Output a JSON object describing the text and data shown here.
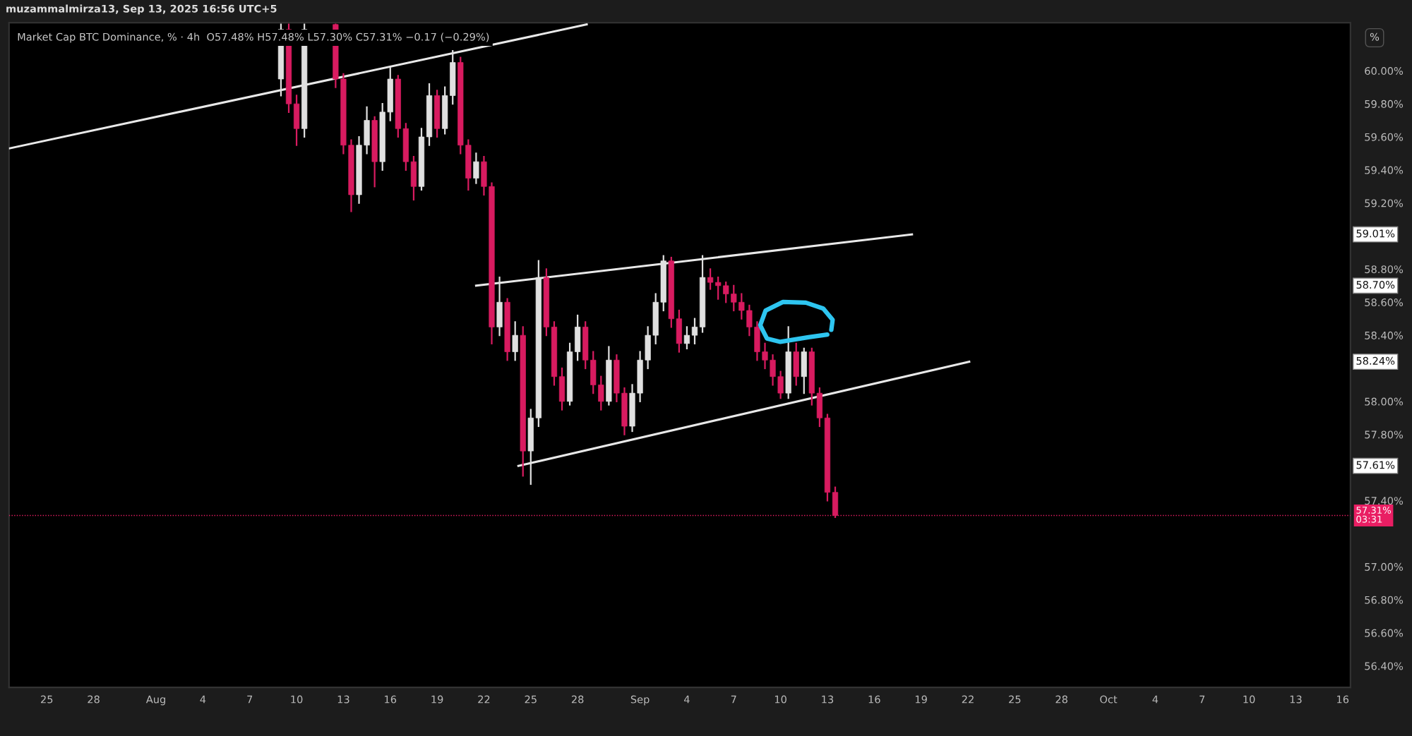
{
  "chart_data": {
    "type": "candlestick",
    "title": "Market Cap BTC Dominance, % · 4h  O57.48% H57.48% L57.30% C57.31% −0.17 (−0.29%)",
    "subtitle": "muzammalmirza13, Sep 13, 2025 16:56 UTC+5",
    "x": [
      "2025-08-09T00:00",
      "2025-08-09T12:00",
      "2025-08-10T00:00",
      "2025-08-10T12:00",
      "2025-08-12T12:00",
      "2025-08-13T00:00",
      "2025-08-13T12:00",
      "2025-08-14T00:00",
      "2025-08-14T12:00",
      "2025-08-15T00:00",
      "2025-08-15T12:00",
      "2025-08-16T00:00",
      "2025-08-16T12:00",
      "2025-08-17T00:00",
      "2025-08-17T12:00",
      "2025-08-18T00:00",
      "2025-08-18T12:00",
      "2025-08-19T00:00",
      "2025-08-19T12:00",
      "2025-08-20T00:00",
      "2025-08-20T12:00",
      "2025-08-21T00:00",
      "2025-08-21T12:00",
      "2025-08-22T00:00",
      "2025-08-22T12:00",
      "2025-08-23T00:00",
      "2025-08-23T12:00",
      "2025-08-24T00:00",
      "2025-08-24T12:00",
      "2025-08-25T00:00",
      "2025-08-25T12:00",
      "2025-08-26T00:00",
      "2025-08-26T12:00",
      "2025-08-27T00:00",
      "2025-08-27T12:00",
      "2025-08-28T00:00",
      "2025-08-28T12:00",
      "2025-08-29T00:00",
      "2025-08-29T12:00",
      "2025-08-30T00:00",
      "2025-08-30T12:00",
      "2025-08-31T00:00",
      "2025-08-31T12:00",
      "2025-09-01T00:00",
      "2025-09-01T12:00",
      "2025-09-02T00:00",
      "2025-09-02T12:00",
      "2025-09-03T00:00",
      "2025-09-03T12:00",
      "2025-09-04T00:00",
      "2025-09-04T12:00",
      "2025-09-05T00:00",
      "2025-09-05T12:00",
      "2025-09-06T00:00",
      "2025-09-06T12:00",
      "2025-09-07T00:00",
      "2025-09-07T12:00",
      "2025-09-08T00:00",
      "2025-09-08T12:00",
      "2025-09-09T00:00",
      "2025-09-09T12:00",
      "2025-09-10T00:00",
      "2025-09-10T12:00",
      "2025-09-11T00:00",
      "2025-09-11T12:00",
      "2025-09-12T00:00",
      "2025-09-12T12:00",
      "2025-09-13T00:00",
      "2025-09-13T12:00"
    ],
    "ohlc": [
      [
        59.95,
        60.28,
        59.85,
        60.25
      ],
      [
        60.25,
        60.28,
        59.75,
        59.8
      ],
      [
        59.8,
        59.85,
        59.55,
        59.65
      ],
      [
        59.65,
        60.28,
        59.6,
        60.25
      ],
      [
        60.28,
        60.28,
        59.9,
        59.95
      ],
      [
        59.95,
        59.98,
        59.5,
        59.55
      ],
      [
        59.55,
        59.58,
        59.15,
        59.25
      ],
      [
        59.25,
        59.6,
        59.2,
        59.55
      ],
      [
        59.55,
        59.78,
        59.5,
        59.7
      ],
      [
        59.7,
        59.72,
        59.3,
        59.45
      ],
      [
        59.45,
        59.8,
        59.4,
        59.75
      ],
      [
        59.75,
        60.02,
        59.7,
        59.95
      ],
      [
        59.95,
        59.97,
        59.6,
        59.65
      ],
      [
        59.65,
        59.68,
        59.4,
        59.45
      ],
      [
        59.45,
        59.48,
        59.22,
        59.3
      ],
      [
        59.3,
        59.65,
        59.28,
        59.6
      ],
      [
        59.6,
        59.92,
        59.55,
        59.85
      ],
      [
        59.85,
        59.88,
        59.6,
        59.65
      ],
      [
        59.65,
        59.9,
        59.62,
        59.85
      ],
      [
        59.85,
        60.12,
        59.8,
        60.05
      ],
      [
        60.05,
        60.08,
        59.5,
        59.55
      ],
      [
        59.55,
        59.58,
        59.28,
        59.35
      ],
      [
        59.35,
        59.5,
        59.32,
        59.45
      ],
      [
        59.45,
        59.48,
        59.25,
        59.3
      ],
      [
        59.3,
        59.32,
        58.35,
        58.45
      ],
      [
        58.45,
        58.75,
        58.4,
        58.6
      ],
      [
        58.6,
        58.62,
        58.25,
        58.3
      ],
      [
        58.3,
        58.48,
        58.25,
        58.4
      ],
      [
        58.4,
        58.45,
        57.55,
        57.7
      ],
      [
        57.7,
        57.95,
        57.5,
        57.9
      ],
      [
        57.9,
        58.85,
        57.85,
        58.75
      ],
      [
        58.75,
        58.8,
        58.4,
        58.45
      ],
      [
        58.45,
        58.48,
        58.1,
        58.15
      ],
      [
        58.15,
        58.2,
        57.95,
        58.0
      ],
      [
        58.0,
        58.35,
        57.98,
        58.3
      ],
      [
        58.3,
        58.52,
        58.25,
        58.45
      ],
      [
        58.45,
        58.48,
        58.2,
        58.25
      ],
      [
        58.25,
        58.3,
        58.05,
        58.1
      ],
      [
        58.1,
        58.15,
        57.95,
        58.0
      ],
      [
        58.0,
        58.33,
        57.98,
        58.25
      ],
      [
        58.25,
        58.28,
        58.0,
        58.05
      ],
      [
        58.05,
        58.08,
        57.8,
        57.85
      ],
      [
        57.85,
        58.1,
        57.82,
        58.05
      ],
      [
        58.05,
        58.3,
        58.0,
        58.25
      ],
      [
        58.25,
        58.45,
        58.2,
        58.4
      ],
      [
        58.4,
        58.65,
        58.35,
        58.6
      ],
      [
        58.6,
        58.88,
        58.55,
        58.85
      ],
      [
        58.85,
        58.87,
        58.45,
        58.5
      ],
      [
        58.5,
        58.55,
        58.3,
        58.35
      ],
      [
        58.35,
        58.45,
        58.32,
        58.4
      ],
      [
        58.4,
        58.5,
        58.35,
        58.45
      ],
      [
        58.45,
        58.88,
        58.42,
        58.75
      ],
      [
        58.75,
        58.8,
        58.68,
        58.72
      ],
      [
        58.72,
        58.75,
        58.62,
        58.7
      ],
      [
        58.7,
        58.72,
        58.6,
        58.65
      ],
      [
        58.65,
        58.7,
        58.55,
        58.6
      ],
      [
        58.6,
        58.65,
        58.5,
        58.55
      ],
      [
        58.55,
        58.58,
        58.4,
        58.45
      ],
      [
        58.45,
        58.48,
        58.25,
        58.3
      ],
      [
        58.3,
        58.35,
        58.2,
        58.25
      ],
      [
        58.25,
        58.28,
        58.1,
        58.15
      ],
      [
        58.15,
        58.18,
        58.02,
        58.05
      ],
      [
        58.05,
        58.45,
        58.02,
        58.3
      ],
      [
        58.3,
        58.35,
        58.1,
        58.15
      ],
      [
        58.15,
        58.32,
        58.05,
        58.3
      ],
      [
        58.3,
        58.32,
        57.98,
        58.05
      ],
      [
        58.05,
        58.08,
        57.85,
        57.9
      ],
      [
        57.9,
        57.92,
        57.4,
        57.45
      ],
      [
        57.45,
        57.48,
        57.3,
        57.31
      ]
    ],
    "colors": [
      "#e0e0e0",
      "#d81b60",
      "#d81b60",
      "#e0e0e0",
      "#d81b60",
      "#d81b60",
      "#d81b60",
      "#e0e0e0",
      "#e0e0e0",
      "#d81b60",
      "#e0e0e0",
      "#e0e0e0",
      "#d81b60",
      "#d81b60",
      "#d81b60",
      "#e0e0e0",
      "#e0e0e0",
      "#d81b60",
      "#e0e0e0",
      "#e0e0e0",
      "#d81b60",
      "#d81b60",
      "#e0e0e0",
      "#d81b60",
      "#d81b60",
      "#e0e0e0",
      "#d81b60",
      "#e0e0e0",
      "#d81b60",
      "#e0e0e0",
      "#e0e0e0",
      "#d81b60",
      "#d81b60",
      "#d81b60",
      "#e0e0e0",
      "#e0e0e0",
      "#d81b60",
      "#d81b60",
      "#d81b60",
      "#e0e0e0",
      "#d81b60",
      "#d81b60",
      "#e0e0e0",
      "#e0e0e0",
      "#e0e0e0",
      "#e0e0e0",
      "#e0e0e0",
      "#d81b60",
      "#d81b60",
      "#e0e0e0",
      "#e0e0e0",
      "#e0e0e0",
      "#d81b60",
      "#d81b60",
      "#d81b60",
      "#d81b60",
      "#d81b60",
      "#d81b60",
      "#d81b60",
      "#d81b60",
      "#d81b60",
      "#d81b60",
      "#e0e0e0",
      "#d81b60",
      "#e0e0e0",
      "#d81b60",
      "#d81b60",
      "#d81b60",
      "#d81b60"
    ],
    "series": [
      {
        "type": "line",
        "color": "#e8e8e8",
        "x": [
          "2025-07-22T14:00",
          "2025-08-28T14:00"
        ],
        "values": [
          59.53,
          60.28
        ]
      },
      {
        "type": "line",
        "color": "#e8e8e8",
        "x": [
          "2025-08-21T12:00",
          "2025-09-18T10:00"
        ],
        "values": [
          58.7,
          59.01
        ]
      },
      {
        "type": "line",
        "color": "#e8e8e8",
        "x": [
          "2025-08-24T05:00",
          "2025-09-22T02:00"
        ],
        "values": [
          57.61,
          58.24
        ]
      }
    ],
    "ref_lines": [
      {
        "axis": "y",
        "value": 57.31,
        "label": "57.31%\n03:31",
        "color": "#e91e63",
        "line_style": "dotted"
      }
    ],
    "annotations": [
      "%",
      "59.01%",
      "58.70%",
      "58.24%",
      "57.61%"
    ],
    "xlim": [
      "2025-07-22T14:00",
      "2025-10-16T12:00"
    ],
    "xticks": [
      {
        "value": "2025-07-25",
        "label": "25"
      },
      {
        "value": "2025-07-28",
        "label": "28"
      },
      {
        "value": "2025-08-01",
        "label": "Aug"
      },
      {
        "value": "2025-08-04",
        "label": "4"
      },
      {
        "value": "2025-08-07",
        "label": "7"
      },
      {
        "value": "2025-08-10",
        "label": "10"
      },
      {
        "value": "2025-08-13",
        "label": "13"
      },
      {
        "value": "2025-08-16",
        "label": "16"
      },
      {
        "value": "2025-08-19",
        "label": "19"
      },
      {
        "value": "2025-08-22",
        "label": "22"
      },
      {
        "value": "2025-08-25",
        "label": "25"
      },
      {
        "value": "2025-08-28",
        "label": "28"
      },
      {
        "value": "2025-09-01",
        "label": "Sep"
      },
      {
        "value": "2025-09-04",
        "label": "4"
      },
      {
        "value": "2025-09-07",
        "label": "7"
      },
      {
        "value": "2025-09-10",
        "label": "10"
      },
      {
        "value": "2025-09-13",
        "label": "13"
      },
      {
        "value": "2025-09-16",
        "label": "16"
      },
      {
        "value": "2025-09-19",
        "label": "19"
      },
      {
        "value": "2025-09-22",
        "label": "22"
      },
      {
        "value": "2025-09-25",
        "label": "25"
      },
      {
        "value": "2025-09-28",
        "label": "28"
      },
      {
        "value": "2025-10-01",
        "label": "Oct"
      },
      {
        "value": "2025-10-04",
        "label": "4"
      },
      {
        "value": "2025-10-07",
        "label": "7"
      },
      {
        "value": "2025-10-10",
        "label": "10"
      },
      {
        "value": "2025-10-13",
        "label": "13"
      },
      {
        "value": "2025-10-16",
        "label": "16"
      }
    ],
    "ylim": [
      56.27,
      60.29
    ],
    "yticks": [
      {
        "value": 56.4,
        "label": "56.40%"
      },
      {
        "value": 56.6,
        "label": "56.60%"
      },
      {
        "value": 56.8,
        "label": "56.80%"
      },
      {
        "value": 57.0,
        "label": "57.00%"
      },
      {
        "value": 57.4,
        "label": "57.40%"
      },
      {
        "value": 57.8,
        "label": "57.80%"
      },
      {
        "value": 58.0,
        "label": "58.00%"
      },
      {
        "value": 58.4,
        "label": "58.40%"
      },
      {
        "value": 58.6,
        "label": "58.60%"
      },
      {
        "value": 58.8,
        "label": "58.80%"
      },
      {
        "value": 59.2,
        "label": "59.20%"
      },
      {
        "value": 59.4,
        "label": "59.40%"
      },
      {
        "value": 59.6,
        "label": "59.60%"
      },
      {
        "value": 59.8,
        "label": "59.80%"
      },
      {
        "value": 60.0,
        "label": "60.00%"
      }
    ]
  }
}
